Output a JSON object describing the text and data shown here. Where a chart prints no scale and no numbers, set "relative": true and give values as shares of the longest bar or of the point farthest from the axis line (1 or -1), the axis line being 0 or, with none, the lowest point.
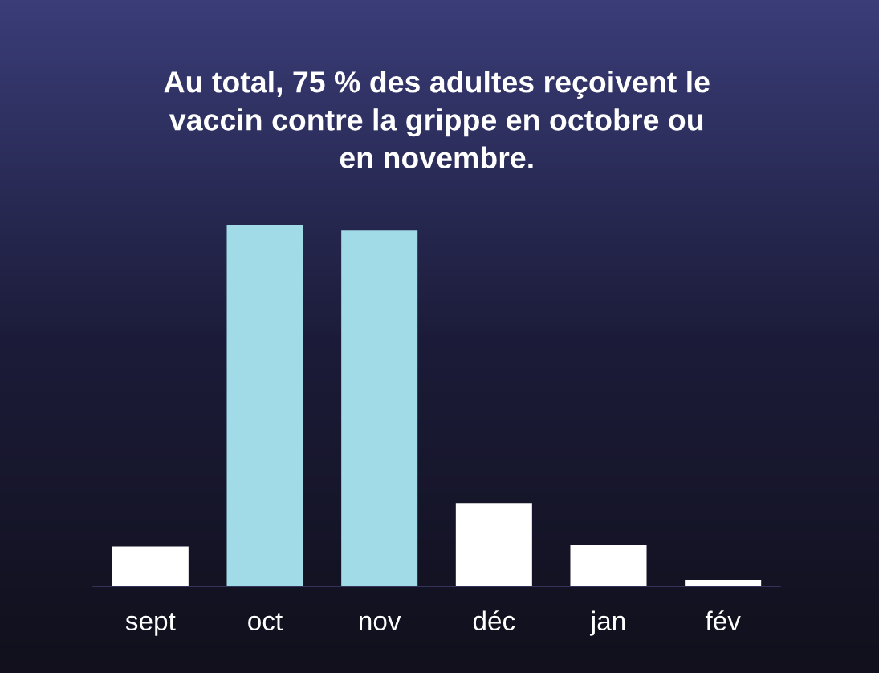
{
  "chart_data": {
    "type": "bar",
    "title": "Au total, 75 % des adultes reçoivent le\nvaccin contre la grippe en octobre ou\nen novembre.",
    "categories": [
      "sept",
      "oct",
      "nov",
      "déc",
      "jan",
      "fév"
    ],
    "values": [
      0.11,
      1,
      0.984,
      0.23,
      0.115,
      0.018
    ],
    "colors": [
      "#ffffff",
      "#a2dbe8",
      "#a2dbe8",
      "#ffffff",
      "#ffffff",
      "#ffffff"
    ],
    "relative": true
  }
}
